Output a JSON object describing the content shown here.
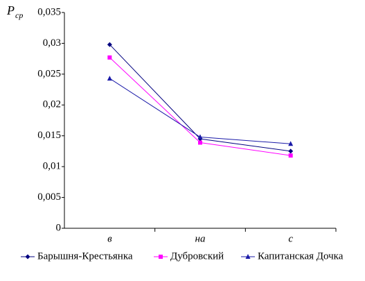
{
  "chart_data": {
    "type": "line",
    "ylabel": "P",
    "ylabel_sub": "ср",
    "categories": [
      "в",
      "на",
      "с"
    ],
    "series": [
      {
        "name": "Барышня-Крестьянка",
        "color": "#000080",
        "marker": "diamond",
        "values": [
          0.0298,
          0.0145,
          0.0125
        ]
      },
      {
        "name": "Дубровский",
        "color": "#ff00ff",
        "marker": "square",
        "values": [
          0.0277,
          0.0139,
          0.0118
        ]
      },
      {
        "name": "Капитанская Дочка",
        "color": "#1a1aa8",
        "marker": "triangle",
        "values": [
          0.0243,
          0.0148,
          0.0137
        ]
      }
    ],
    "ylim": [
      0,
      0.035
    ],
    "yticks": [
      0,
      {
        "value": 0.005,
        "label": "0,005"
      },
      {
        "value": 0.01,
        "label": "0,01"
      },
      {
        "value": 0.015,
        "label": "0,015"
      },
      {
        "value": 0.02,
        "label": "0,02"
      },
      {
        "value": 0.025,
        "label": "0,025"
      },
      {
        "value": 0.03,
        "label": "0,03"
      },
      {
        "value": 0.035,
        "label": "0,035"
      }
    ],
    "grid": false,
    "legend": "bottom"
  }
}
